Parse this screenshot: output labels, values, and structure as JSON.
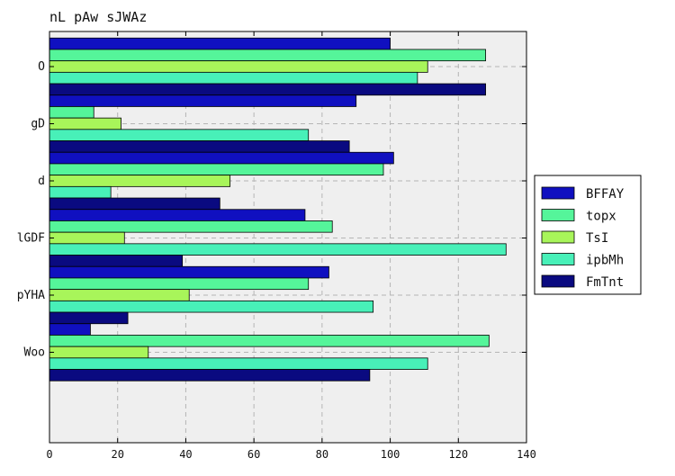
{
  "chart_data": {
    "type": "bar",
    "orientation": "horizontal",
    "title": "nL pAw sJWAz",
    "xlabel": "",
    "ylabel": "",
    "xlim": [
      0,
      140
    ],
    "x_ticks": [
      0,
      20,
      40,
      60,
      80,
      100,
      120,
      140
    ],
    "categories": [
      "O",
      "gD",
      "d",
      "lGDF",
      "pYHA",
      "Woo"
    ],
    "grid": true,
    "legend_position": "right",
    "series": [
      {
        "name": "BFFAY",
        "color": "#1010c0",
        "values": [
          100,
          90,
          101,
          75,
          82,
          12
        ]
      },
      {
        "name": "topx",
        "color": "#55f59a",
        "values": [
          128,
          13,
          98,
          83,
          76,
          129
        ]
      },
      {
        "name": "TsI",
        "color": "#a8f55a",
        "values": [
          111,
          21,
          53,
          22,
          41,
          29
        ]
      },
      {
        "name": "ipbMh",
        "color": "#48f0b8",
        "values": [
          108,
          76,
          18,
          134,
          95,
          111
        ]
      },
      {
        "name": "FmTnt",
        "color": "#0a0a80",
        "values": [
          128,
          88,
          50,
          39,
          23,
          94
        ]
      }
    ]
  }
}
